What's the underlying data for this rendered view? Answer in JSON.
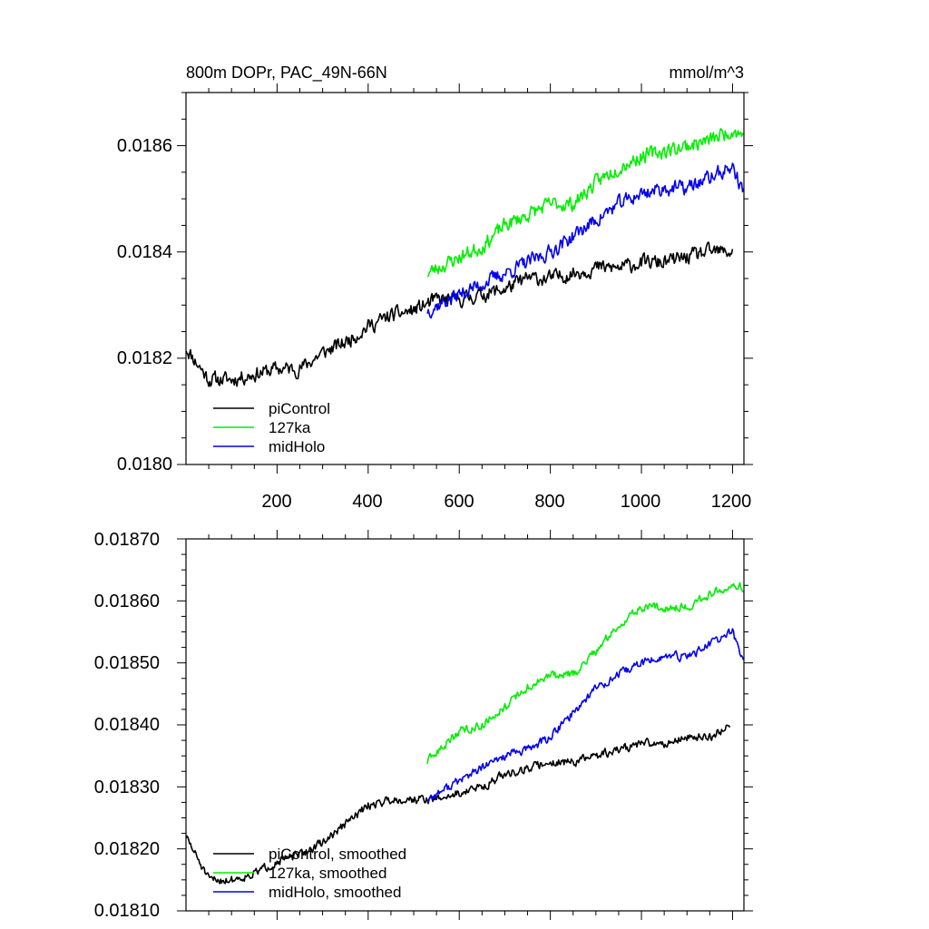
{
  "chart_data": [
    {
      "type": "line",
      "title": "800m DOPr, PAC_49N-66N",
      "units": "mmol/m^3",
      "xlim": [
        0,
        1225
      ],
      "ylim": [
        0.018,
        0.0187
      ],
      "xticks": [
        200,
        400,
        600,
        800,
        1000,
        1200
      ],
      "xtick_labels": [
        "200",
        "400",
        "600",
        "800",
        "1000",
        "1200"
      ],
      "yticks": [
        0.018,
        0.0182,
        0.0184,
        0.0186
      ],
      "ytick_labels": [
        "0.0180",
        "0.0182",
        "0.0184",
        "0.0186"
      ],
      "legend_position": "bottom-left",
      "series": [
        {
          "name": "piControl",
          "legend_label": "piControl",
          "color": "#000000",
          "x": [
            0,
            50,
            100,
            150,
            200,
            250,
            300,
            350,
            400,
            450,
            500,
            550,
            600,
            650,
            700,
            750,
            800,
            850,
            900,
            950,
            1000,
            1050,
            1100,
            1150,
            1200
          ],
          "y": [
            0.01822,
            0.01816,
            0.01816,
            0.01817,
            0.01818,
            0.01818,
            0.01821,
            0.01823,
            0.01826,
            0.01828,
            0.01829,
            0.01831,
            0.01831,
            0.01832,
            0.01833,
            0.01835,
            0.01835,
            0.01836,
            0.01837,
            0.01837,
            0.01838,
            0.01838,
            0.01839,
            0.0184,
            0.0184
          ],
          "noise": 2.2e-05,
          "seed": 11
        },
        {
          "name": "127ka",
          "legend_label": "127ka",
          "color": "#00ee00",
          "x": [
            530,
            600,
            650,
            700,
            750,
            800,
            850,
            900,
            950,
            1000,
            1050,
            1100,
            1150,
            1200,
            1225
          ],
          "y": [
            0.01836,
            0.01839,
            0.01841,
            0.01845,
            0.01847,
            0.01849,
            0.01849,
            0.01853,
            0.01856,
            0.01858,
            0.01859,
            0.0186,
            0.01861,
            0.01863,
            0.01862
          ],
          "noise": 2.2e-05,
          "seed": 23
        },
        {
          "name": "midHolo",
          "legend_label": "midHolo",
          "color": "#0000ee",
          "x": [
            530,
            600,
            650,
            700,
            750,
            800,
            850,
            900,
            950,
            1000,
            1050,
            1100,
            1150,
            1200,
            1225
          ],
          "y": [
            0.01829,
            0.01832,
            0.01834,
            0.01836,
            0.01838,
            0.0184,
            0.01843,
            0.01846,
            0.01849,
            0.01851,
            0.01852,
            0.01852,
            0.01854,
            0.01856,
            0.01851
          ],
          "noise": 2.2e-05,
          "seed": 37
        }
      ]
    },
    {
      "type": "line",
      "xlim": [
        0,
        1225
      ],
      "ylim": [
        0.0181,
        0.0187
      ],
      "xticks": [
        200,
        400,
        600,
        800,
        1000,
        1200
      ],
      "yticks": [
        0.0181,
        0.0182,
        0.0183,
        0.0184,
        0.0185,
        0.0186,
        0.0187
      ],
      "ytick_labels": [
        "0.01810",
        "0.01820",
        "0.01830",
        "0.01840",
        "0.01850",
        "0.01860",
        "0.01870"
      ],
      "legend_position": "bottom-left",
      "series": [
        {
          "name": "piControl, smoothed",
          "legend_label": "piControl, smoothed",
          "color": "#000000",
          "x": [
            0,
            50,
            100,
            150,
            200,
            250,
            300,
            350,
            400,
            450,
            500,
            550,
            600,
            650,
            700,
            750,
            800,
            850,
            900,
            950,
            1000,
            1050,
            1100,
            1150,
            1195
          ],
          "y": [
            0.01822,
            0.01815,
            0.01815,
            0.01816,
            0.01818,
            0.01819,
            0.01821,
            0.01824,
            0.01827,
            0.01828,
            0.01828,
            0.01828,
            0.01829,
            0.0183,
            0.01832,
            0.01833,
            0.01834,
            0.01834,
            0.01835,
            0.01836,
            0.01837,
            0.01837,
            0.01838,
            0.01838,
            0.0184
          ],
          "noise": 1.1e-05,
          "seed": 51
        },
        {
          "name": "127ka, smoothed",
          "legend_label": "127ka, smoothed",
          "color": "#00ee00",
          "x": [
            530,
            600,
            650,
            700,
            750,
            800,
            850,
            900,
            950,
            1000,
            1050,
            1100,
            1150,
            1200,
            1225
          ],
          "y": [
            0.01834,
            0.01839,
            0.0184,
            0.01843,
            0.01846,
            0.01848,
            0.01848,
            0.01852,
            0.01856,
            0.01859,
            0.01859,
            0.01859,
            0.01861,
            0.01863,
            0.01862
          ],
          "noise": 1.1e-05,
          "seed": 63
        },
        {
          "name": "midHolo, smoothed",
          "legend_label": "midHolo, smoothed",
          "color": "#0000ee",
          "x": [
            530,
            600,
            650,
            700,
            750,
            800,
            850,
            900,
            950,
            1000,
            1050,
            1100,
            1150,
            1200,
            1225
          ],
          "y": [
            0.01828,
            0.01831,
            0.01833,
            0.01835,
            0.01836,
            0.01838,
            0.01842,
            0.01846,
            0.01848,
            0.0185,
            0.01851,
            0.01851,
            0.01853,
            0.01855,
            0.0185
          ],
          "noise": 1.1e-05,
          "seed": 77
        }
      ]
    }
  ]
}
